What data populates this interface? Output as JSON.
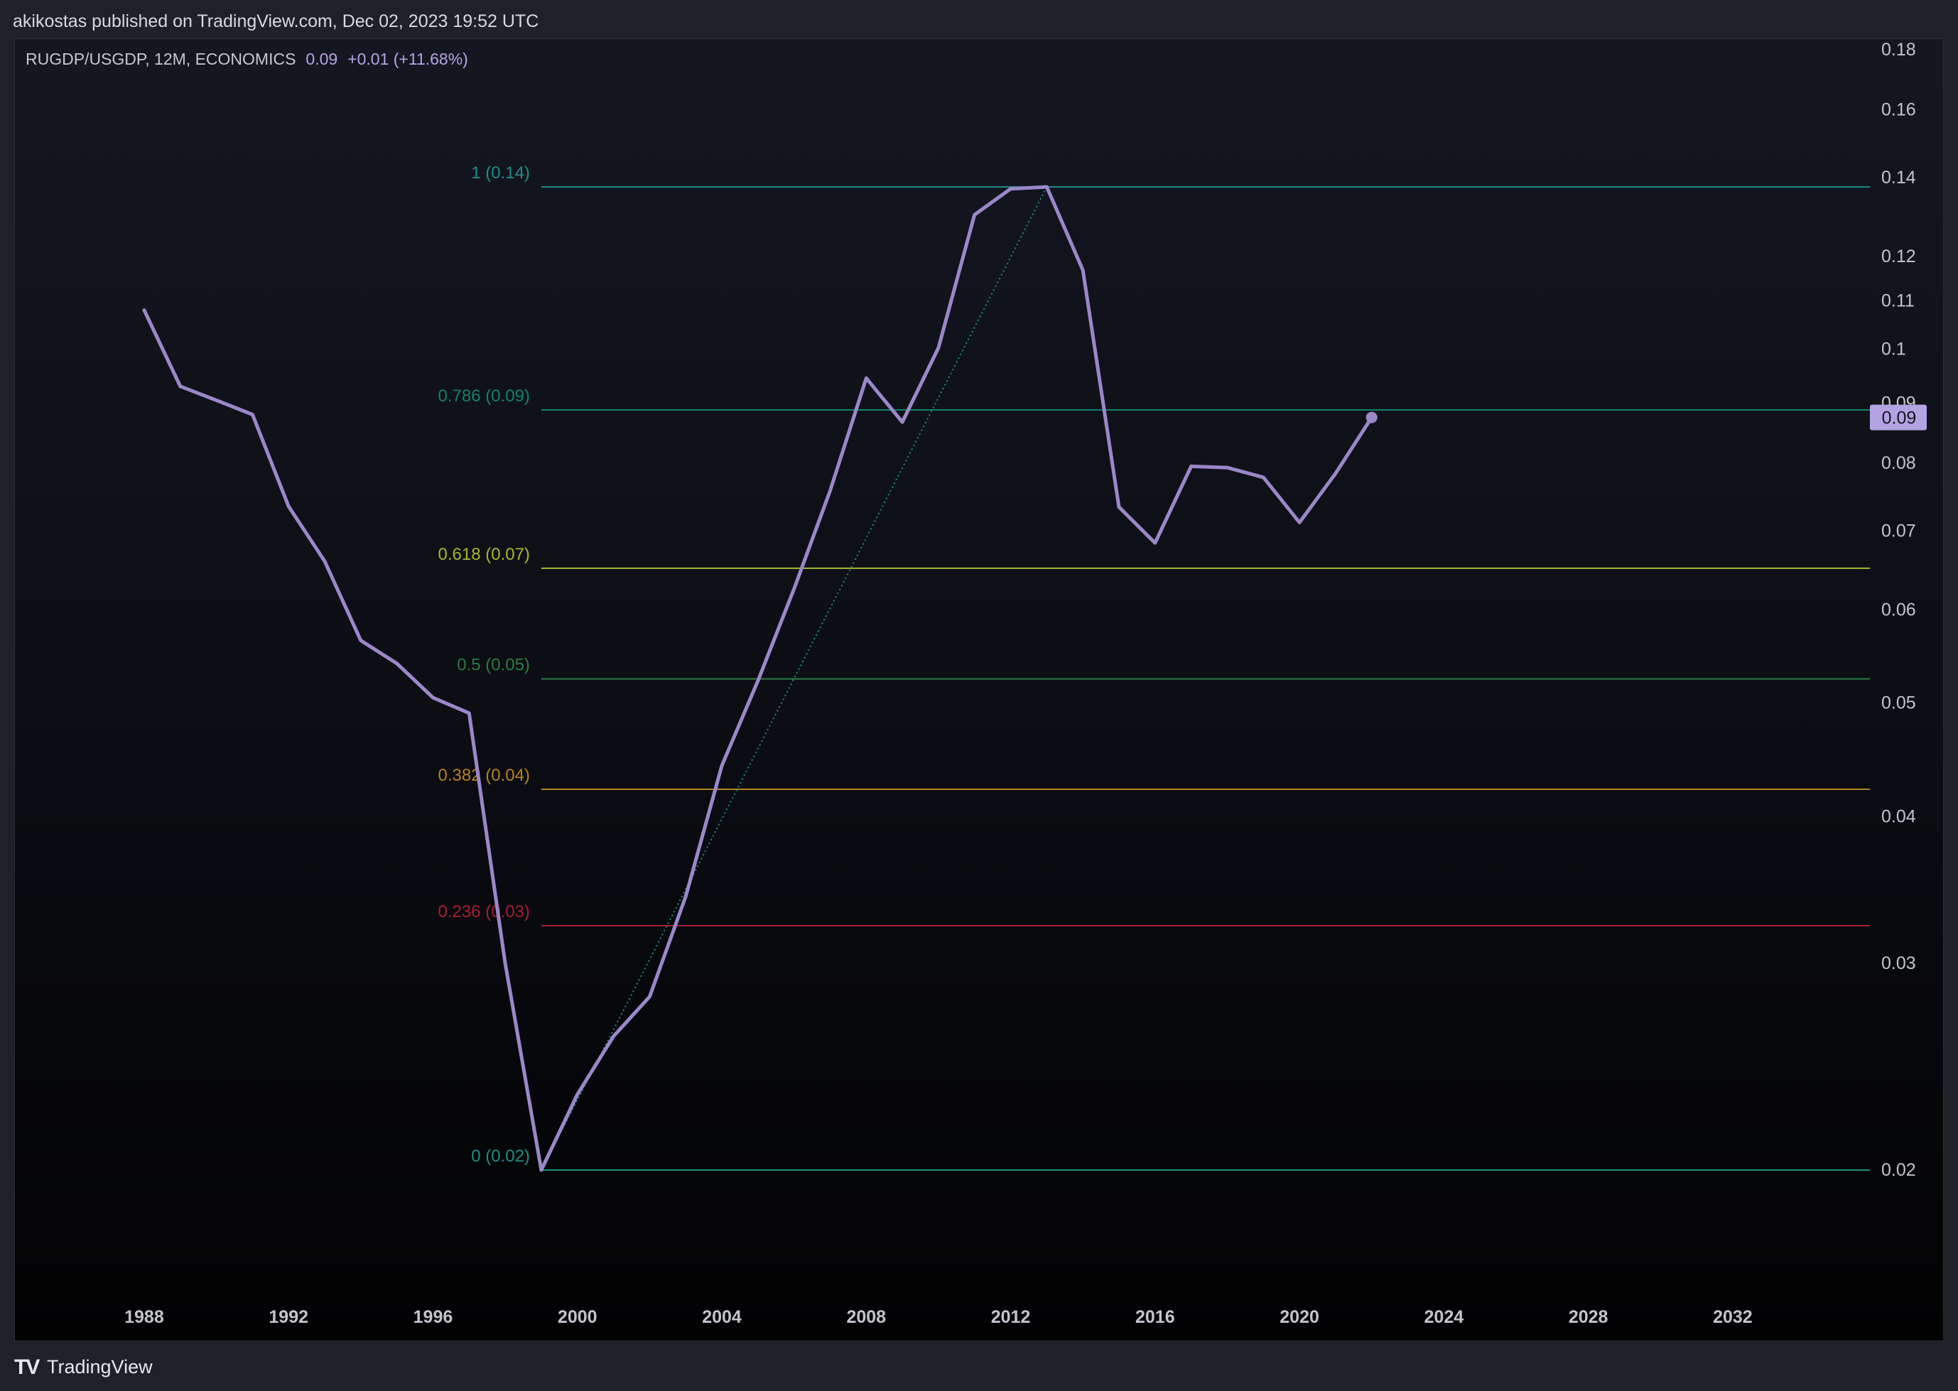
{
  "header": {
    "published_text": "akikostas published on TradingView.com, Dec 02, 2023 19:52 UTC"
  },
  "legend": {
    "symbol_text": "RUGDP/USGDP, 12M, ECONOMICS",
    "value": "0.09",
    "change": "+0.01 (+11.68%)"
  },
  "footer": {
    "logo_glyph": "𝟷𝟽",
    "brand": "TradingView"
  },
  "colors": {
    "series": "#9b87c9",
    "price_badge_bg": "#b4a3e3",
    "price_badge_text": "#131722",
    "axis_text": "#c3c5cc"
  },
  "chart_data": {
    "type": "line",
    "scale": "log",
    "ylim": [
      0.0155,
      0.184
    ],
    "xlim": [
      1984.4,
      2035.8
    ],
    "y_ticks": [
      "0.18",
      "0.16",
      "0.14",
      "0.12",
      "0.11",
      "0.1",
      "0.09",
      "0.08",
      "0.07",
      "0.06",
      "0.05",
      "0.04",
      "0.03",
      "0.02"
    ],
    "x_ticks": [
      "1988",
      "1992",
      "1996",
      "2000",
      "2004",
      "2008",
      "2012",
      "2016",
      "2020",
      "2024",
      "2028",
      "2032"
    ],
    "last_value_label": "0.09",
    "series": [
      {
        "values": [
          [
            1988,
            0.108
          ],
          [
            1989,
            0.093
          ],
          [
            1990,
            0.0905
          ],
          [
            1991,
            0.088
          ],
          [
            1992,
            0.0735
          ],
          [
            1993,
            0.066
          ],
          [
            1994,
            0.0565
          ],
          [
            1995,
            0.054
          ],
          [
            1996,
            0.0505
          ],
          [
            1997,
            0.049
          ],
          [
            1998,
            0.03
          ],
          [
            1999,
            0.02
          ],
          [
            2000,
            0.0232
          ],
          [
            2001,
            0.026
          ],
          [
            2002,
            0.0281
          ],
          [
            2003,
            0.0342
          ],
          [
            2004,
            0.0442
          ],
          [
            2005,
            0.0522
          ],
          [
            2006,
            0.0625
          ],
          [
            2007,
            0.0758
          ],
          [
            2008,
            0.0945
          ],
          [
            2009,
            0.0867
          ],
          [
            2010,
            0.1003
          ],
          [
            2011,
            0.1302
          ],
          [
            2012,
            0.137
          ],
          [
            2013,
            0.1375
          ],
          [
            2014,
            0.1168
          ],
          [
            2015,
            0.0734
          ],
          [
            2016,
            0.0684
          ],
          [
            2017,
            0.0795
          ],
          [
            2018,
            0.0793
          ],
          [
            2019,
            0.0778
          ],
          [
            2020,
            0.0712
          ],
          [
            2021,
            0.0784
          ],
          [
            2022,
            0.0875
          ]
        ]
      }
    ],
    "fibonacci": {
      "levels": [
        {
          "label": "1 (0.14)",
          "value": 0.1375,
          "color": "#1e8f86"
        },
        {
          "label": "0.786 (0.09)",
          "value": 0.0888,
          "color": "#14806d"
        },
        {
          "label": "0.618 (0.07)",
          "value": 0.0651,
          "color": "#a8b82f"
        },
        {
          "label": "0.5 (0.05)",
          "value": 0.0524,
          "color": "#2e7a43"
        },
        {
          "label": "0.382 (0.04)",
          "value": 0.0422,
          "color": "#b58221"
        },
        {
          "label": "0.236 (0.03)",
          "value": 0.0323,
          "color": "#a81e31"
        },
        {
          "label": "0 (0.02)",
          "value": 0.02,
          "color": "#1e8f86"
        }
      ],
      "x_start": 1999,
      "trend_from": [
        1999,
        0.02
      ],
      "trend_to": [
        2013,
        0.1375
      ],
      "trend_color": "#1e8f86"
    }
  }
}
